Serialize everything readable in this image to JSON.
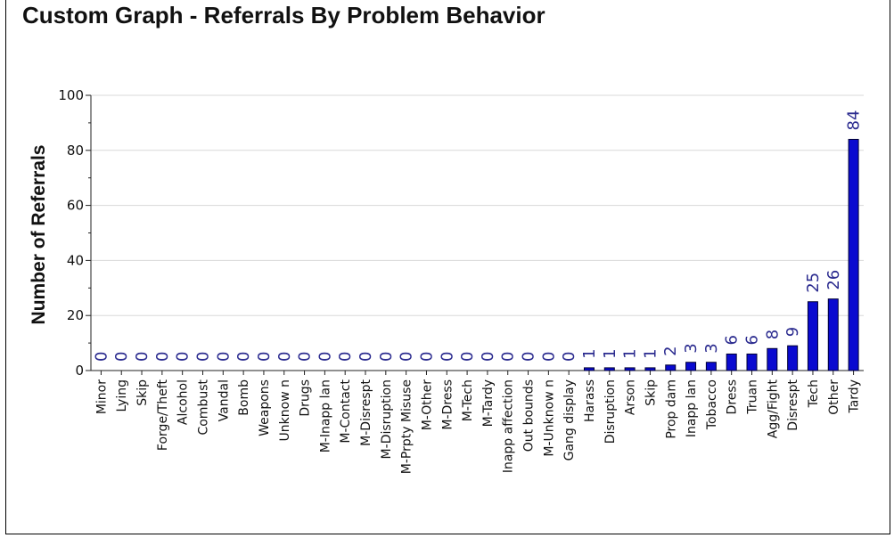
{
  "chart_data": {
    "type": "bar",
    "title": "Custom Graph - Referrals By Problem Behavior",
    "xlabel": "",
    "ylabel": "Number of Referrals",
    "ylim": [
      0,
      100
    ],
    "yticks": [
      0,
      20,
      40,
      60,
      80,
      100
    ],
    "grid": true,
    "categories": [
      "Minor",
      "Lying",
      "Skip",
      "Forge/Theft",
      "Alcohol",
      "Combust",
      "Vandal",
      "Bomb",
      "Weapons",
      "Unknow n",
      "Drugs",
      "M-Inapp lan",
      "M-Contact",
      "M-Disrespt",
      "M-Disruption",
      "M-Prpty Misuse",
      "M-Other",
      "M-Dress",
      "M-Tech",
      "M-Tardy",
      "Inapp affection",
      "Out bounds",
      "M-Unknow n",
      "Gang display",
      "Harass",
      "Disruption",
      "Arson",
      "Skip",
      "Prop dam",
      "Inapp lan",
      "Tobacco",
      "Dress",
      "Truan",
      "Agg/Fight",
      "Disrespt",
      "Tech",
      "Other",
      "Tardy"
    ],
    "values": [
      0,
      0,
      0,
      0,
      0,
      0,
      0,
      0,
      0,
      0,
      0,
      0,
      0,
      0,
      0,
      0,
      0,
      0,
      0,
      0,
      0,
      0,
      0,
      0,
      1,
      1,
      1,
      1,
      2,
      3,
      3,
      6,
      6,
      8,
      9,
      25,
      26,
      84
    ],
    "colors": {
      "bar": "#0a0ad0",
      "bar_edge": "#000033",
      "data_label": "#2b2b8f",
      "grid": "#d8d8d8"
    }
  }
}
